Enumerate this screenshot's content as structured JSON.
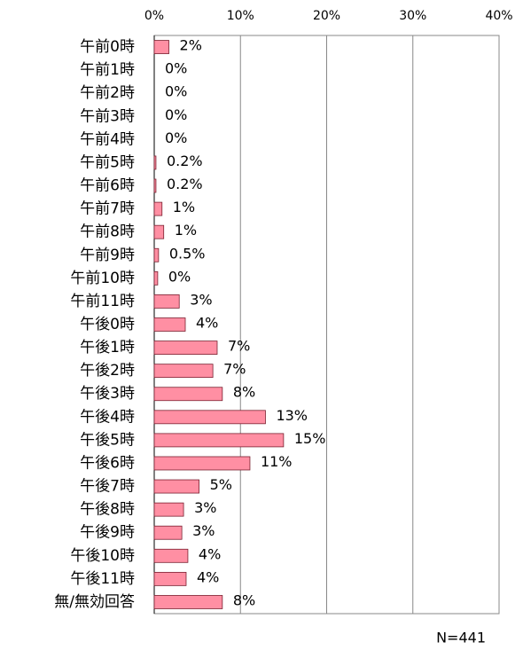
{
  "chart_data": {
    "type": "bar",
    "orientation": "horizontal",
    "categories": [
      "午前0時",
      "午前1時",
      "午前2時",
      "午前3時",
      "午前4時",
      "午前5時",
      "午前6時",
      "午前7時",
      "午前8時",
      "午前9時",
      "午前10時",
      "午前11時",
      "午後0時",
      "午後1時",
      "午後2時",
      "午後3時",
      "午後4時",
      "午後5時",
      "午後6時",
      "午後7時",
      "午後8時",
      "午後9時",
      "午後10時",
      "午後11時",
      "無/無効回答"
    ],
    "values": [
      1.7,
      0,
      0,
      0,
      0,
      0.2,
      0.2,
      0.9,
      1.1,
      0.5,
      0.4,
      2.9,
      3.6,
      7.3,
      6.8,
      7.9,
      12.9,
      15.0,
      11.1,
      5.2,
      3.4,
      3.2,
      3.9,
      3.7,
      7.9
    ],
    "value_labels": [
      "2%",
      "0%",
      "0%",
      "0%",
      "0%",
      "0.2%",
      "0.2%",
      "1%",
      "1%",
      "0.5%",
      "0%",
      "3%",
      "4%",
      "7%",
      "7%",
      "8%",
      "13%",
      "15%",
      "11%",
      "5%",
      "3%",
      "3%",
      "4%",
      "4%",
      "8%"
    ],
    "color": "#ff8fa3",
    "xlim": [
      0,
      40
    ],
    "xticks": [
      {
        "value": 0,
        "label": "0%"
      },
      {
        "value": 10,
        "label": "10%"
      },
      {
        "value": 20,
        "label": "20%"
      },
      {
        "value": 30,
        "label": "30%"
      },
      {
        "value": 40,
        "label": "40%"
      }
    ],
    "grid": true,
    "annotation": "N=441"
  }
}
